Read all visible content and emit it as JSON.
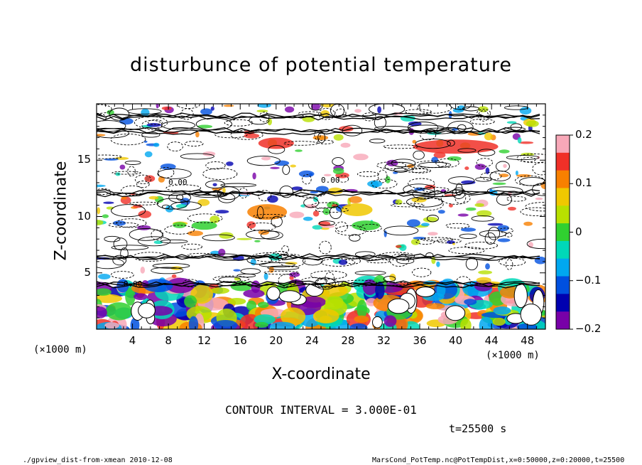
{
  "title": "disturbunce of potential temperature",
  "chart_data": {
    "type": "heatmap",
    "title": "disturbunce of potential temperature",
    "xlabel": "X-coordinate",
    "ylabel": "Z-coordinate",
    "x_scale_label": "(×1000 m)",
    "y_scale_label": "(×1000 m)",
    "xlim": [
      0,
      50
    ],
    "ylim": [
      0,
      20
    ],
    "x_ticks": [
      "4",
      "8",
      "12",
      "16",
      "20",
      "24",
      "28",
      "32",
      "36",
      "40",
      "44",
      "48"
    ],
    "y_ticks": [
      "5",
      "10",
      "15"
    ],
    "colorbar": {
      "ticks": [
        "0.2",
        "0.1",
        "0",
        "−0.1",
        "−0.2"
      ],
      "range": [
        -0.2,
        0.2
      ],
      "colors": [
        "#f8a8b8",
        "#f03028",
        "#f88000",
        "#f0c800",
        "#b8e000",
        "#30d030",
        "#00d8b8",
        "#00a8f0",
        "#0050e0",
        "#0000b0",
        "#7800a8"
      ]
    },
    "contour_interval": "CONTOUR INTERVAL = 3.000E-01",
    "contour_labels": [
      "0.00",
      "0.00",
      "0.00"
    ],
    "grid": false
  },
  "time_label": "t=25500 s",
  "footer": {
    "left": "./gpview_dist-from-xmean 2010-12-08",
    "right": "MarsCond_PotTemp.nc@PotTempDist,x=0:50000,z=0:20000,t=25500"
  }
}
